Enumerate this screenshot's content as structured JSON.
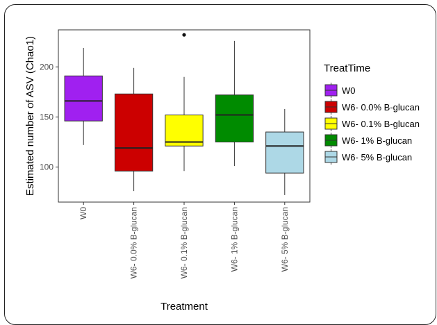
{
  "chart_data": {
    "type": "box",
    "xlabel": "Treatment",
    "ylabel": "Estimated number of ASV (Chao1)",
    "ylim": [
      65,
      237
    ],
    "yticks": [
      100,
      150,
      200
    ],
    "grid": false,
    "legend": {
      "title": "TreatTime",
      "placement": "right"
    },
    "categories": [
      "W0",
      "W6- 0.0% B-glucan",
      "W6- 0.1% B-glucan",
      "W6- 1% B-glucan",
      "W6- 5% B-glucan"
    ],
    "boxes": [
      {
        "name": "W0",
        "min": 122,
        "q1": 146,
        "median": 166,
        "q3": 191,
        "max": 219,
        "outliers": [],
        "color": "#A020F0"
      },
      {
        "name": "W6- 0.0% B-glucan",
        "min": 76,
        "q1": 96,
        "median": 119,
        "q3": 173,
        "max": 199,
        "outliers": [],
        "color": "#CC0000"
      },
      {
        "name": "W6- 0.1% B-glucan",
        "min": 96,
        "q1": 121,
        "median": 125,
        "q3": 152,
        "max": 190,
        "outliers": [
          232
        ],
        "color": "#FFFF00"
      },
      {
        "name": "W6- 1% B-glucan",
        "min": 101,
        "q1": 125,
        "median": 152,
        "q3": 172,
        "max": 226,
        "outliers": [],
        "color": "#008B00"
      },
      {
        "name": "W6- 5% B-glucan",
        "min": 72,
        "q1": 94,
        "median": 121,
        "q3": 135,
        "max": 158,
        "outliers": [],
        "color": "#ADD8E6"
      }
    ]
  }
}
